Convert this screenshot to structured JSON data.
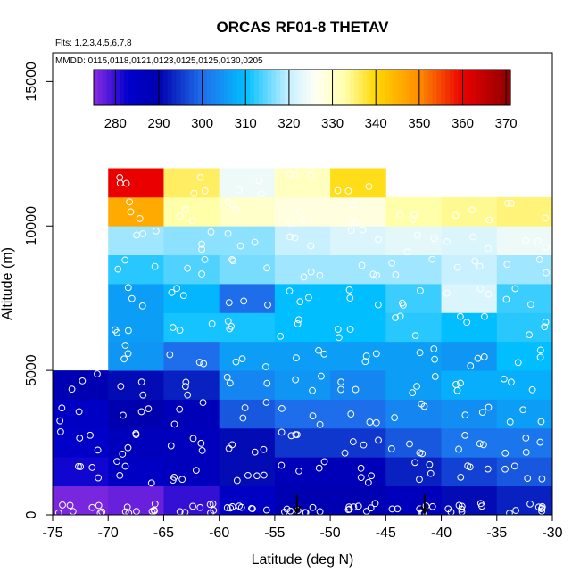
{
  "chart_data": {
    "type": "heatmap",
    "title": "ORCAS RF01-8 THETAV",
    "flights_note": "Flts: 1,2,3,4,5,6,7,8",
    "dates_note": "MMDD: 0115,0118,0121,0123,0125,0125,0130,0205",
    "xlabel": "Latitude (deg N)",
    "ylabel": "Altitude (m)",
    "xlim": [
      -75,
      -30
    ],
    "ylim": [
      0,
      16000
    ],
    "x_ticks": [
      "-75",
      "-70",
      "-65",
      "-60",
      "-55",
      "-50",
      "-45",
      "-40",
      "-35",
      "-30"
    ],
    "x_tick_values": [
      -75,
      -70,
      -65,
      -60,
      -55,
      -50,
      -45,
      -40,
      -35,
      -30
    ],
    "y_ticks": [
      "0",
      "5000",
      "10000",
      "15000"
    ],
    "y_tick_values": [
      0,
      5000,
      10000,
      15000
    ],
    "colorbar": {
      "min": 275,
      "max": 371,
      "tick_labels": [
        "280",
        "290",
        "300",
        "310",
        "320",
        "330",
        "340",
        "350",
        "360",
        "370"
      ],
      "tick_values": [
        280,
        290,
        300,
        310,
        320,
        330,
        340,
        350,
        360,
        370
      ]
    },
    "grid": false,
    "lat_bins": [
      -75,
      -70,
      -65,
      -60,
      -55,
      -50,
      -45,
      -40,
      -35,
      -30
    ],
    "alt_bins": [
      0,
      1000,
      2000,
      3000,
      4000,
      5000,
      6000,
      7000,
      8000,
      9000,
      10000,
      11000,
      12000
    ],
    "cells": [
      [
        276,
        277,
        280,
        285,
        289,
        289,
        287,
        291,
        293,
        null
      ],
      [
        282,
        285,
        287,
        291,
        288,
        288,
        293,
        296,
        298,
        null
      ],
      [
        284,
        287,
        287,
        291,
        295,
        295,
        298,
        301,
        301,
        null
      ],
      [
        285,
        290,
        288,
        298,
        300,
        300,
        303,
        304,
        306,
        null
      ],
      [
        289,
        291,
        293,
        303,
        305,
        303,
        306,
        308,
        308,
        null
      ],
      [
        null,
        305,
        300,
        306,
        306,
        306,
        306,
        305,
        310,
        null
      ],
      [
        null,
        306,
        311,
        311,
        310,
        310,
        312,
        310,
        312,
        null
      ],
      [
        null,
        306,
        309,
        300,
        310,
        310,
        313,
        322,
        313,
        null
      ],
      [
        null,
        312,
        314,
        316,
        318,
        318,
        318,
        320,
        318,
        318
      ],
      [
        null,
        318,
        317,
        317,
        320,
        322,
        323,
        322,
        324,
        329
      ],
      [
        null,
        346,
        333,
        330,
        328,
        328,
        333,
        334,
        335,
        336
      ],
      [
        null,
        360,
        336,
        324,
        331,
        339,
        null,
        null,
        null,
        null
      ]
    ],
    "arrows_at_latitude": [
      -53,
      -41.5
    ]
  }
}
